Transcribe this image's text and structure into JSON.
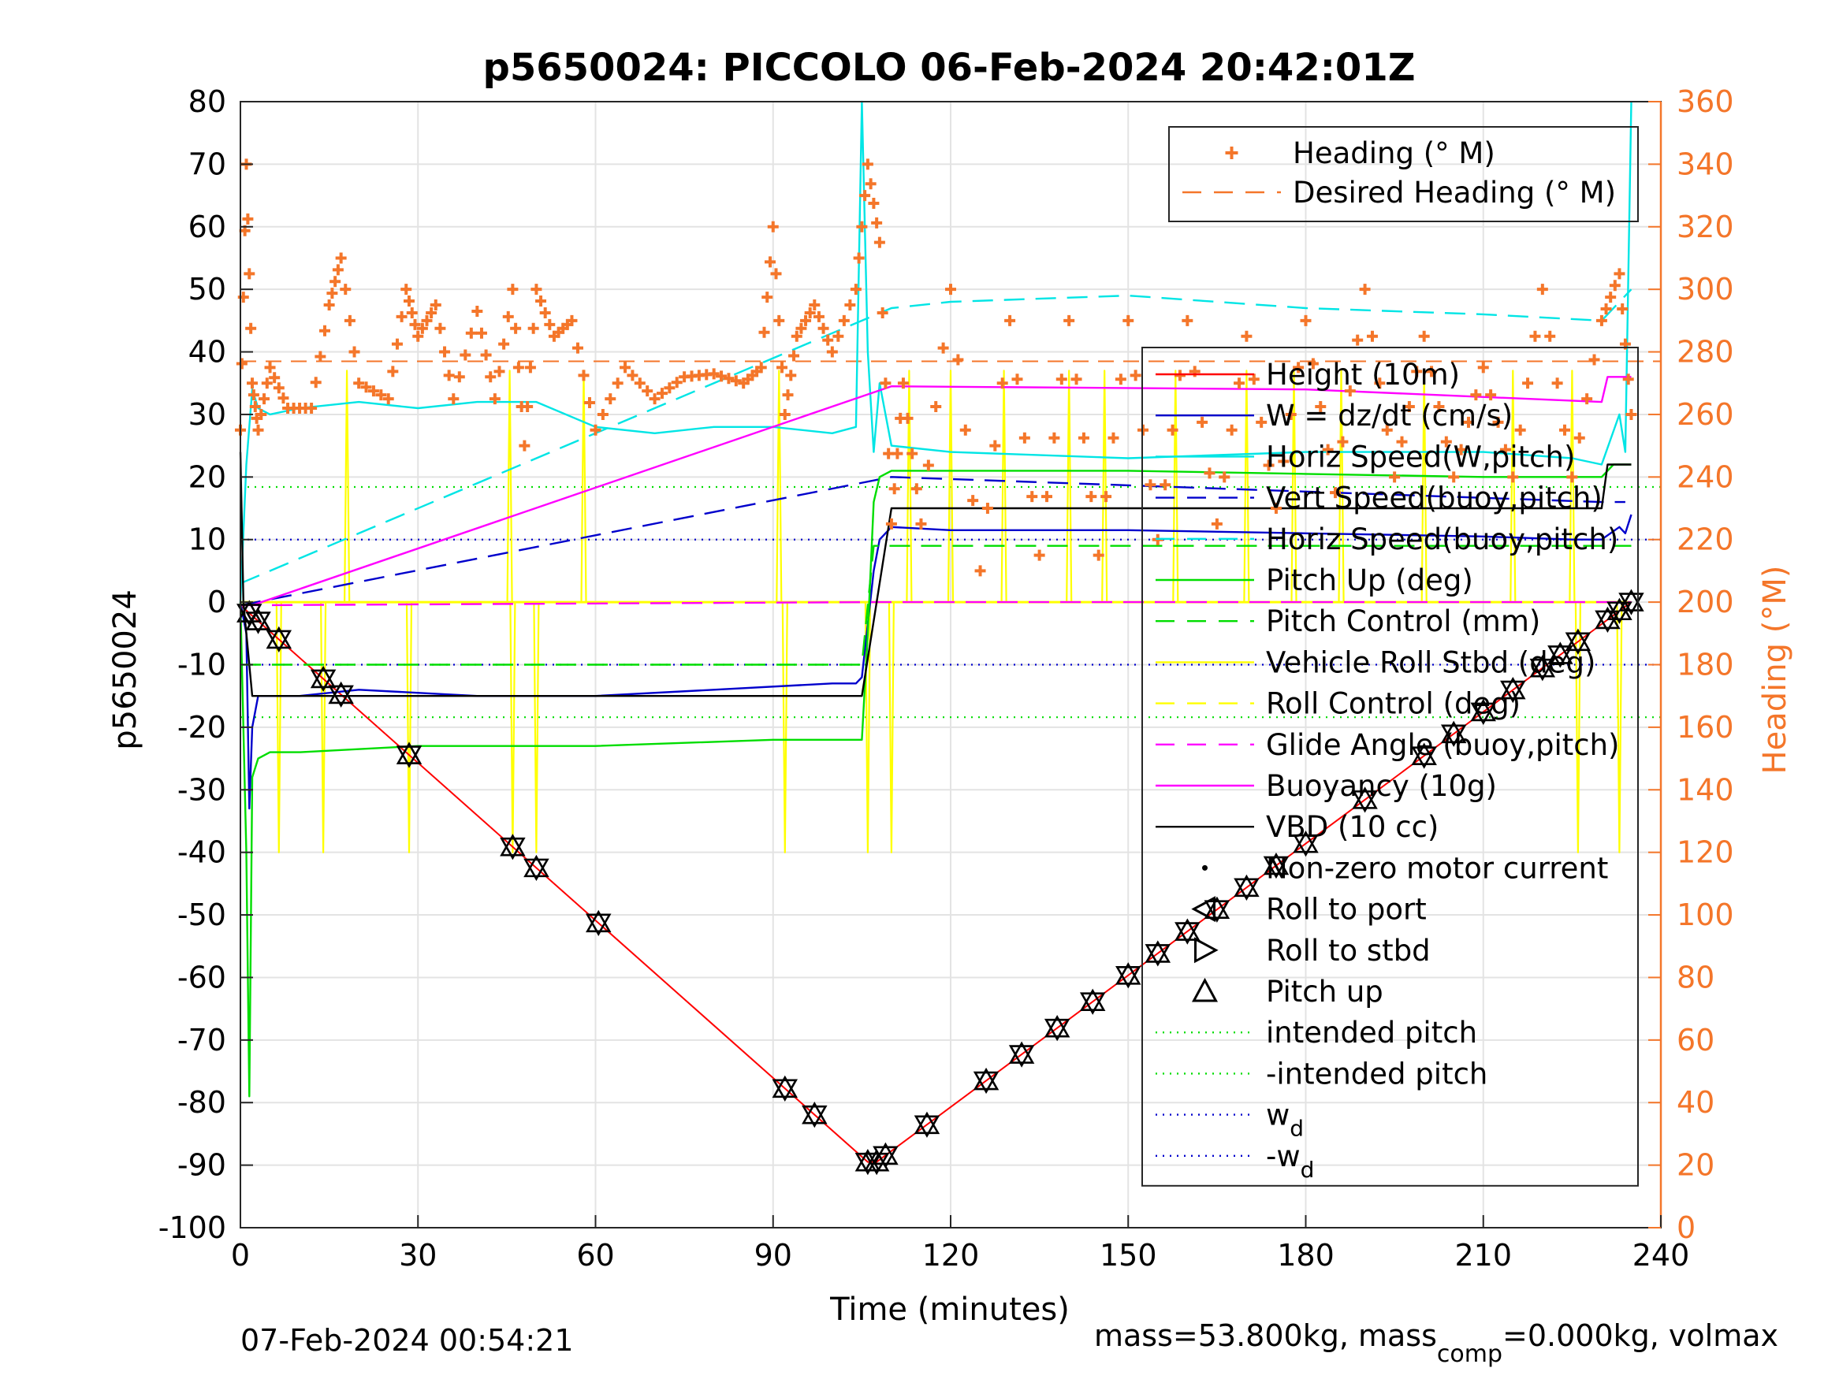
{
  "chart_data": {
    "type": "line",
    "title": "p5650024: PICCOLO 06-Feb-2024 20:42:01Z",
    "xlabel": "Time (minutes)",
    "ylabel": "p5650024",
    "y2label": "Heading (°M)",
    "xlim": [
      0,
      240
    ],
    "ylim": [
      -100,
      80
    ],
    "y2lim": [
      0,
      360
    ],
    "x_ticks": [
      "0",
      "30",
      "60",
      "90",
      "120",
      "150",
      "180",
      "210",
      "240"
    ],
    "y_ticks": [
      "80",
      "70",
      "60",
      "50",
      "40",
      "30",
      "20",
      "10",
      "0",
      "-10",
      "-20",
      "-30",
      "-40",
      "-50",
      "-60",
      "-70",
      "-80",
      "-90",
      "-100"
    ],
    "y2_ticks": [
      "360",
      "340",
      "320",
      "300",
      "280",
      "260",
      "240",
      "220",
      "200",
      "180",
      "160",
      "140",
      "120",
      "100",
      "80",
      "60",
      "40",
      "20",
      "0"
    ],
    "grid": true,
    "legends": {
      "heading": {
        "placement": "top-right",
        "entries": [
          {
            "label": "Heading (° M)",
            "color": "#f4762a",
            "marker": "+"
          },
          {
            "label": "Desired Heading (° M)",
            "color": "#f4762a",
            "style": "dashed"
          }
        ]
      },
      "main": {
        "placement": "right",
        "entries": [
          {
            "label": "Height (10m)",
            "color": "#ff0000",
            "style": "solid"
          },
          {
            "label": "W = dz/dt (cm/s)",
            "color": "#0000cc",
            "style": "solid"
          },
          {
            "label": "Horiz Speed(W,pitch)",
            "color": "#00e5e5",
            "style": "solid"
          },
          {
            "label": "Vert Speed(buoy,pitch)",
            "color": "#0000cc",
            "style": "dashed"
          },
          {
            "label": "Horiz Speed(buoy,pitch)",
            "color": "#00e5e5",
            "style": "dashed"
          },
          {
            "label": "Pitch Up (deg)",
            "color": "#00dd00",
            "style": "solid"
          },
          {
            "label": "Pitch Control (mm)",
            "color": "#00dd00",
            "style": "dashed"
          },
          {
            "label": "Vehicle Roll Stbd (deg)",
            "color": "#ffff00",
            "style": "solid"
          },
          {
            "label": "Roll Control (deg)",
            "color": "#ffff00",
            "style": "dashed"
          },
          {
            "label": "Glide Angle (buoy,pitch)",
            "color": "#ff00ff",
            "style": "dashed"
          },
          {
            "label": "Buoyancy (10g)",
            "color": "#ff00ff",
            "style": "solid"
          },
          {
            "label": "VBD (10 cc)",
            "color": "#000000",
            "style": "solid"
          },
          {
            "label": "Non-zero motor current",
            "color": "#000000",
            "marker": "dot"
          },
          {
            "label": "Roll to port",
            "color": "#000000",
            "marker": "triangle-left"
          },
          {
            "label": "Roll to stbd",
            "color": "#000000",
            "marker": "triangle-right"
          },
          {
            "label": "Pitch up",
            "color": "#000000",
            "marker": "triangle-up"
          },
          {
            "label": "intended pitch",
            "color": "#00dd00",
            "style": "dotted"
          },
          {
            "label": "-intended pitch",
            "color": "#00dd00",
            "style": "dotted"
          },
          {
            "label": "w",
            "sub": "d",
            "color": "#0000cc",
            "style": "dotted"
          },
          {
            "label": "-w",
            "sub": "d",
            "color": "#0000cc",
            "style": "dotted"
          }
        ]
      }
    },
    "series": [
      {
        "name": "Height (10m)",
        "color": "#ff0000",
        "x": [
          0,
          106,
          107.5,
          235
        ],
        "y": [
          -0.5,
          -89.5,
          -89.5,
          0
        ]
      },
      {
        "name": "W = dz/dt (cm/s)",
        "color": "#0000cc",
        "x": [
          0,
          1,
          1.5,
          2,
          3,
          5,
          10,
          20,
          40,
          60,
          80,
          100,
          104,
          105,
          107,
          108,
          110,
          120,
          150,
          180,
          210,
          225,
          230,
          233,
          234,
          235
        ],
        "y": [
          0,
          -5,
          -33,
          -20,
          -15,
          -15,
          -15,
          -14,
          -15,
          -15,
          -14,
          -13,
          -13,
          -12,
          5,
          10,
          12,
          11.5,
          11.5,
          11,
          10.5,
          10,
          10,
          12,
          11,
          14
        ]
      },
      {
        "name": "Horiz Speed(W,pitch)",
        "color": "#00e5e5",
        "x": [
          0,
          1,
          2,
          3,
          5,
          10,
          20,
          30,
          40,
          50,
          60,
          70,
          80,
          90,
          100,
          104,
          105,
          106,
          107,
          108,
          110,
          120,
          150,
          180,
          210,
          225,
          230,
          233,
          234,
          235
        ],
        "y": [
          0,
          22,
          34,
          31,
          30,
          31,
          32,
          31,
          32,
          32,
          28,
          27,
          28,
          28,
          27,
          28,
          80,
          40,
          24,
          35,
          25,
          24,
          23,
          24,
          24,
          23,
          22,
          30,
          24,
          80
        ]
      },
      {
        "name": "Vert Speed(buoy,pitch)",
        "color": "#0000cc",
        "x": [
          0,
          110,
          230,
          234
        ],
        "y": [
          -0.5,
          20,
          16,
          16
        ]
      },
      {
        "name": "Horiz Speed(buoy,pitch)",
        "color": "#00e5e5",
        "x": [
          0,
          110,
          120,
          150,
          180,
          210,
          230,
          235
        ],
        "y": [
          3,
          47,
          48,
          49,
          47,
          46,
          45,
          50
        ]
      },
      {
        "name": "Pitch Up (deg)",
        "color": "#00dd00",
        "x": [
          0,
          1,
          1.5,
          2,
          3,
          5,
          10,
          30,
          60,
          90,
          105,
          106,
          107,
          108,
          110,
          150,
          180,
          210,
          230,
          232,
          235
        ],
        "y": [
          0,
          -40,
          -79,
          -28,
          -25,
          -24,
          -24,
          -23,
          -23,
          -22,
          -22,
          -5,
          16,
          20,
          21,
          21,
          20.5,
          20,
          20,
          22,
          22
        ]
      },
      {
        "name": "Pitch Control (mm)",
        "color": "#00dd00",
        "x": [
          0,
          105,
          107,
          230,
          235
        ],
        "y": [
          -10,
          -10,
          9,
          9,
          9
        ]
      },
      {
        "name": "Glide Angle (buoy,pitch)",
        "color": "#ff00ff",
        "x": [
          0,
          107,
          235
        ],
        "y": [
          -0.5,
          0,
          0
        ]
      },
      {
        "name": "Buoyancy (10g)",
        "color": "#ff00ff",
        "x": [
          2,
          110,
          180,
          230,
          231,
          235
        ],
        "y": [
          -0.5,
          34.5,
          34,
          32,
          36,
          36
        ]
      },
      {
        "name": "VBD (10 cc)",
        "color": "#000000",
        "x": [
          0,
          0.5,
          2,
          105,
          110,
          230,
          231,
          235
        ],
        "y": [
          24,
          0,
          -15,
          -15,
          15,
          15,
          22,
          22
        ]
      },
      {
        "name": "Heading (° M)",
        "color": "#f4762a",
        "axis": "right",
        "x": [
          0,
          1,
          2,
          3,
          5,
          8,
          12,
          15,
          17,
          20,
          25,
          28,
          30,
          33,
          36,
          40,
          43,
          46,
          48,
          50,
          53,
          56,
          60,
          65,
          70,
          75,
          80,
          85,
          88,
          90,
          92,
          94,
          97,
          100,
          104,
          106,
          108,
          110,
          112,
          115,
          120,
          125,
          130,
          135,
          140,
          145,
          150,
          155,
          160,
          165,
          170,
          175,
          180,
          185,
          190,
          195,
          200,
          205,
          210,
          215,
          220,
          225,
          230,
          233,
          235
        ],
        "y": [
          255,
          340,
          270,
          255,
          275,
          262,
          262,
          295,
          310,
          270,
          265,
          300,
          285,
          295,
          265,
          293,
          265,
          300,
          250,
          300,
          285,
          290,
          255,
          275,
          265,
          272,
          273,
          270,
          275,
          320,
          260,
          285,
          295,
          280,
          300,
          340,
          315,
          225,
          270,
          225,
          300,
          210,
          290,
          215,
          290,
          215,
          290,
          220,
          290,
          225,
          285,
          230,
          290,
          235,
          300,
          240,
          285,
          240,
          275,
          240,
          300,
          240,
          290,
          305,
          260
        ]
      }
    ],
    "desired_heading": {
      "value": 277,
      "axis": "right",
      "color": "#f4762a"
    },
    "intended_pitch": 18.4,
    "w_d": 10,
    "roll_control": {
      "color": "#ffff00",
      "baseline": 0,
      "spikes_down_x": [
        6.5,
        14,
        28.5,
        46,
        50,
        92,
        106,
        110,
        226,
        233
      ],
      "spikes_up_x": [
        18,
        45.5,
        58,
        91,
        113,
        120,
        129,
        140,
        146,
        158,
        170,
        178,
        186,
        200,
        215,
        225
      ]
    },
    "events": {
      "pitch_up_x": [
        1.5,
        3,
        6.5,
        14,
        17,
        28.5,
        46,
        50,
        60.5,
        92,
        97,
        106,
        107.5,
        109,
        116,
        126,
        132,
        138,
        144,
        150,
        155,
        160,
        165,
        170,
        175,
        180,
        190,
        200,
        205,
        210,
        215,
        220,
        223,
        226,
        231,
        233,
        235
      ]
    }
  },
  "footer": {
    "timestamp": "07-Feb-2024 00:54:21",
    "mass_text_a": "mass=53.800kg, mass",
    "mass_sub": "comp",
    "mass_text_b": "=0.000kg, volmax"
  }
}
